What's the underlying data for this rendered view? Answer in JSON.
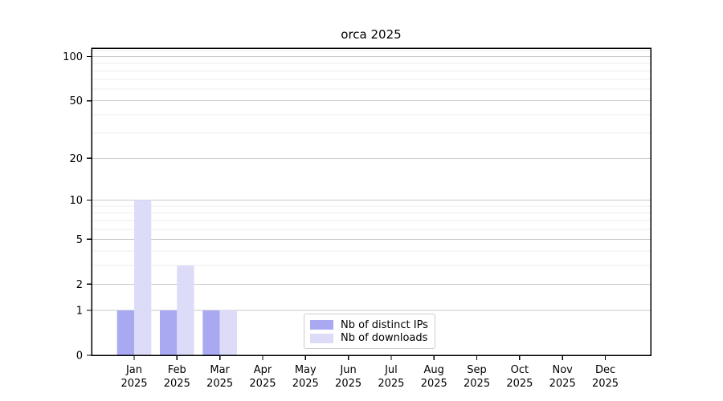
{
  "chart_data": {
    "type": "bar",
    "title": "orca 2025",
    "year": "2025",
    "categories": [
      "Jan",
      "Feb",
      "Mar",
      "Apr",
      "May",
      "Jun",
      "Jul",
      "Aug",
      "Sep",
      "Oct",
      "Nov",
      "Dec"
    ],
    "series": [
      {
        "name": "Nb of distinct IPs",
        "color": "#a9a9f2",
        "values": [
          1,
          1,
          1,
          0,
          0,
          0,
          0,
          0,
          0,
          0,
          0,
          0
        ]
      },
      {
        "name": "Nb of downloads",
        "color": "#dcdcf8",
        "values": [
          10,
          3,
          1,
          0,
          0,
          0,
          0,
          0,
          0,
          0,
          0,
          0
        ]
      }
    ],
    "xlabel": "",
    "ylabel": "",
    "yscale": "log1p",
    "ylim": [
      0,
      114
    ],
    "yticks": [
      0,
      1,
      2,
      5,
      10,
      20,
      50,
      100
    ],
    "minor_gridlines": [
      3,
      4,
      6,
      7,
      8,
      9,
      30,
      40,
      60,
      70,
      80,
      90,
      110
    ],
    "grid": {
      "on": true,
      "major_color": "#c9c9c9",
      "minor_color": "#ededed"
    },
    "axis_color": "#000000",
    "tick_label_color": "#000000",
    "legend": {
      "position": "lower center",
      "border_color": "#cccccc"
    }
  }
}
